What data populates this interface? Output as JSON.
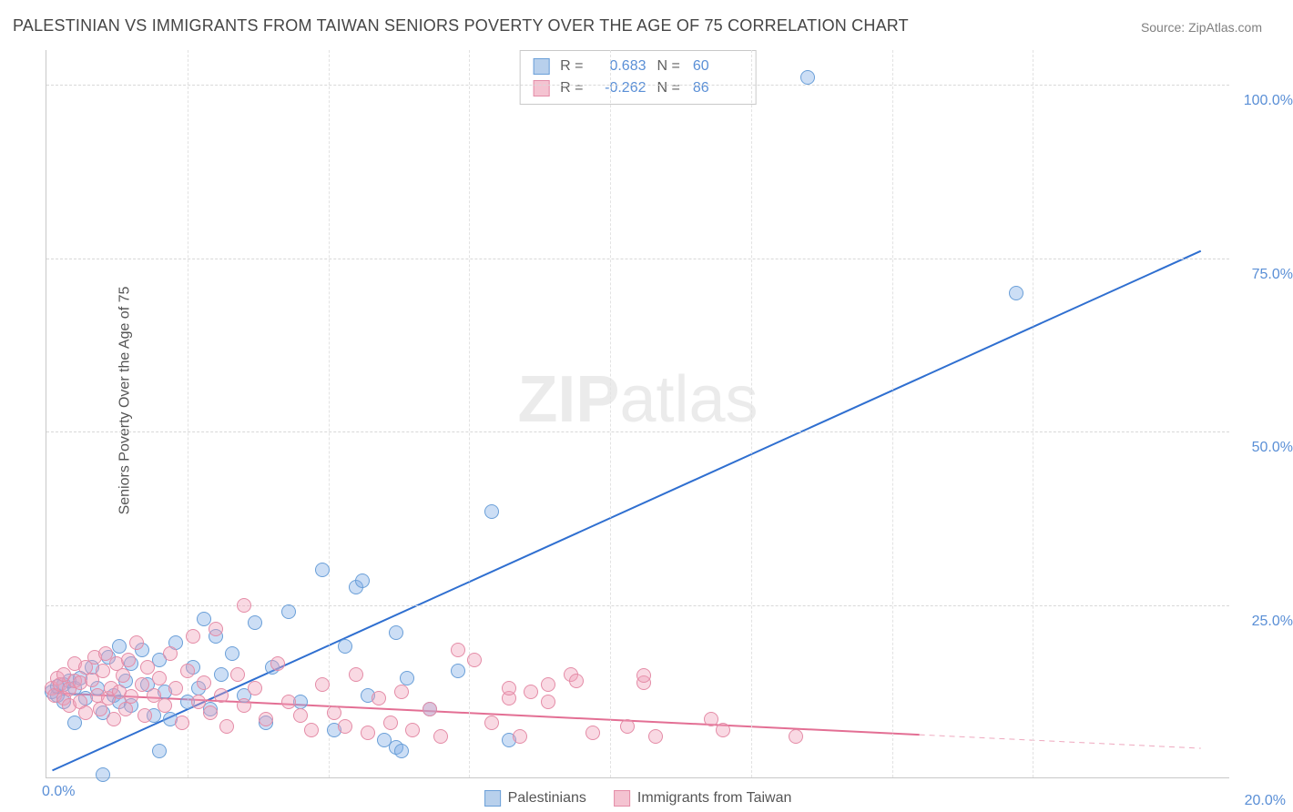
{
  "title": "PALESTINIAN VS IMMIGRANTS FROM TAIWAN SENIORS POVERTY OVER THE AGE OF 75 CORRELATION CHART",
  "source_label": "Source: ",
  "source_name": "ZipAtlas.com",
  "ylabel": "Seniors Poverty Over the Age of 75",
  "watermark_bold": "ZIP",
  "watermark_light": "atlas",
  "chart": {
    "type": "scatter",
    "background_color": "#ffffff",
    "grid_color_h": "#d8d8d8",
    "grid_color_v": "#e2e2e2",
    "axis_color": "#c8c8c8",
    "tick_text_color": "#5a8fd6",
    "label_text_color": "#555555",
    "title_text_color": "#454545",
    "title_fontsize": 18,
    "label_fontsize": 16,
    "tick_fontsize": 16,
    "xlim": [
      0,
      21
    ],
    "ylim": [
      0,
      105
    ],
    "y_ticks": [
      25,
      50,
      75,
      100
    ],
    "y_tick_labels": [
      "25.0%",
      "50.0%",
      "75.0%",
      "100.0%"
    ],
    "x_axis_visible_tick": {
      "value": 0,
      "label": "0.0%"
    },
    "x_right_tick": {
      "value": 20,
      "label": "20.0%"
    },
    "x_minor_ticks": [
      2.5,
      5,
      7.5,
      10,
      12.5,
      15,
      17.5
    ],
    "point_radius": 8,
    "point_border_width": 1,
    "point_fill_opacity": 0.35
  },
  "series": [
    {
      "name": "Palestinians",
      "color_fill": "rgba(127,172,230,0.40)",
      "color_stroke": "#6a9fd8",
      "swatch_fill": "#b8d0ec",
      "swatch_border": "#6a9fd8",
      "R": "0.683",
      "N": "60",
      "trend": {
        "x1": 0.1,
        "y1": 1.0,
        "x2": 20.5,
        "y2": 76.0,
        "color": "#2f6fd0",
        "width": 2,
        "dash_from_x": null
      },
      "points": [
        [
          0.1,
          12.5
        ],
        [
          0.2,
          12.0
        ],
        [
          0.2,
          13.2
        ],
        [
          0.3,
          11.0
        ],
        [
          0.3,
          13.5
        ],
        [
          0.4,
          14.0
        ],
        [
          0.5,
          13.0
        ],
        [
          0.5,
          8.0
        ],
        [
          0.6,
          14.5
        ],
        [
          0.7,
          11.5
        ],
        [
          0.8,
          16.0
        ],
        [
          0.9,
          13.0
        ],
        [
          1.0,
          9.5
        ],
        [
          1.1,
          17.5
        ],
        [
          1.2,
          12.0
        ],
        [
          1.3,
          11.0
        ],
        [
          1.3,
          19.0
        ],
        [
          1.4,
          14.0
        ],
        [
          1.5,
          10.5
        ],
        [
          1.5,
          16.5
        ],
        [
          1.7,
          18.5
        ],
        [
          1.8,
          13.5
        ],
        [
          1.9,
          9.0
        ],
        [
          2.0,
          17.0
        ],
        [
          2.1,
          12.5
        ],
        [
          2.2,
          8.5
        ],
        [
          2.3,
          19.5
        ],
        [
          2.5,
          11.0
        ],
        [
          2.6,
          16.0
        ],
        [
          2.7,
          13.0
        ],
        [
          2.8,
          23.0
        ],
        [
          2.9,
          10.0
        ],
        [
          3.0,
          20.5
        ],
        [
          3.1,
          15.0
        ],
        [
          3.3,
          18.0
        ],
        [
          3.5,
          12.0
        ],
        [
          3.7,
          22.5
        ],
        [
          3.9,
          8.0
        ],
        [
          4.0,
          16.0
        ],
        [
          4.3,
          24.0
        ],
        [
          4.5,
          11.0
        ],
        [
          4.9,
          30.0
        ],
        [
          5.1,
          7.0
        ],
        [
          5.3,
          19.0
        ],
        [
          5.5,
          27.5
        ],
        [
          5.6,
          28.5
        ],
        [
          5.7,
          12.0
        ],
        [
          6.0,
          5.5
        ],
        [
          6.2,
          21.0
        ],
        [
          6.2,
          4.5
        ],
        [
          6.3,
          4.0
        ],
        [
          6.4,
          14.5
        ],
        [
          6.8,
          10.0
        ],
        [
          7.3,
          15.5
        ],
        [
          7.9,
          38.5
        ],
        [
          8.2,
          5.5
        ],
        [
          13.5,
          101.0
        ],
        [
          17.2,
          70.0
        ],
        [
          1.0,
          0.5
        ],
        [
          2.0,
          4.0
        ]
      ]
    },
    {
      "name": "Immigrants from Taiwan",
      "color_fill": "rgba(240,160,185,0.40)",
      "color_stroke": "#e48ca7",
      "swatch_fill": "#f4c3d1",
      "swatch_border": "#e48ca7",
      "R": "-0.262",
      "N": "86",
      "trend": {
        "x1": 0.1,
        "y1": 12.2,
        "x2": 20.5,
        "y2": 4.2,
        "color": "#e36f94",
        "width": 2,
        "dash_from_x": 15.5
      },
      "points": [
        [
          0.1,
          13.0
        ],
        [
          0.15,
          12.0
        ],
        [
          0.2,
          14.5
        ],
        [
          0.25,
          13.5
        ],
        [
          0.3,
          11.5
        ],
        [
          0.3,
          15.0
        ],
        [
          0.4,
          12.8
        ],
        [
          0.4,
          10.5
        ],
        [
          0.5,
          14.0
        ],
        [
          0.5,
          16.5
        ],
        [
          0.6,
          11.0
        ],
        [
          0.6,
          13.8
        ],
        [
          0.7,
          16.0
        ],
        [
          0.7,
          9.5
        ],
        [
          0.8,
          14.2
        ],
        [
          0.85,
          17.5
        ],
        [
          0.9,
          12.0
        ],
        [
          0.95,
          10.0
        ],
        [
          1.0,
          15.5
        ],
        [
          1.05,
          18.0
        ],
        [
          1.1,
          11.5
        ],
        [
          1.15,
          13.0
        ],
        [
          1.2,
          8.5
        ],
        [
          1.25,
          16.5
        ],
        [
          1.3,
          12.5
        ],
        [
          1.35,
          14.8
        ],
        [
          1.4,
          10.0
        ],
        [
          1.45,
          17.0
        ],
        [
          1.5,
          11.8
        ],
        [
          1.6,
          19.5
        ],
        [
          1.7,
          13.5
        ],
        [
          1.75,
          9.0
        ],
        [
          1.8,
          16.0
        ],
        [
          1.9,
          12.0
        ],
        [
          2.0,
          14.5
        ],
        [
          2.1,
          10.5
        ],
        [
          2.2,
          18.0
        ],
        [
          2.3,
          13.0
        ],
        [
          2.4,
          8.0
        ],
        [
          2.5,
          15.5
        ],
        [
          2.6,
          20.5
        ],
        [
          2.7,
          11.0
        ],
        [
          2.8,
          13.8
        ],
        [
          2.9,
          9.5
        ],
        [
          3.0,
          21.5
        ],
        [
          3.1,
          12.0
        ],
        [
          3.2,
          7.5
        ],
        [
          3.4,
          15.0
        ],
        [
          3.5,
          10.5
        ],
        [
          3.5,
          25.0
        ],
        [
          3.7,
          13.0
        ],
        [
          3.9,
          8.5
        ],
        [
          4.1,
          16.5
        ],
        [
          4.3,
          11.0
        ],
        [
          4.5,
          9.0
        ],
        [
          4.7,
          7.0
        ],
        [
          4.9,
          13.5
        ],
        [
          5.1,
          9.5
        ],
        [
          5.3,
          7.5
        ],
        [
          5.5,
          15.0
        ],
        [
          5.7,
          6.5
        ],
        [
          5.9,
          11.5
        ],
        [
          6.1,
          8.0
        ],
        [
          6.3,
          12.5
        ],
        [
          6.5,
          7.0
        ],
        [
          6.8,
          10.0
        ],
        [
          7.0,
          6.0
        ],
        [
          7.3,
          18.5
        ],
        [
          7.6,
          17.0
        ],
        [
          7.9,
          8.0
        ],
        [
          8.2,
          11.5
        ],
        [
          8.2,
          13.0
        ],
        [
          8.4,
          6.0
        ],
        [
          8.6,
          12.5
        ],
        [
          8.9,
          11.0
        ],
        [
          8.9,
          13.5
        ],
        [
          9.3,
          15.0
        ],
        [
          9.4,
          14.0
        ],
        [
          9.7,
          6.5
        ],
        [
          10.3,
          7.5
        ],
        [
          10.6,
          13.8
        ],
        [
          10.6,
          14.8
        ],
        [
          10.8,
          6.0
        ],
        [
          11.8,
          8.5
        ],
        [
          12.0,
          7.0
        ],
        [
          13.3,
          6.0
        ]
      ]
    }
  ],
  "legend_top_labels": {
    "R": "R =",
    "N": "N ="
  },
  "legend_bottom": [
    "Palestinians",
    "Immigrants from Taiwan"
  ]
}
